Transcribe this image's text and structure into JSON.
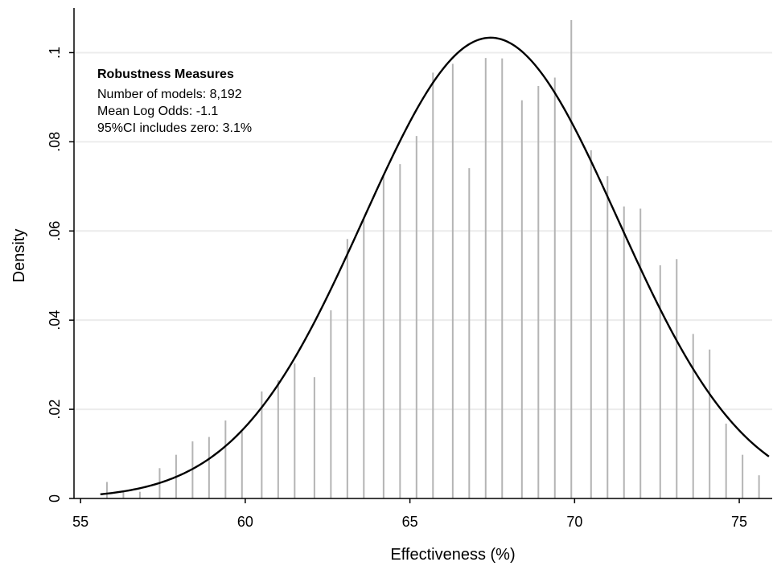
{
  "chart_data": {
    "type": "bar",
    "xlabel": "Effectiveness (%)",
    "ylabel": "Density",
    "xlim": [
      54.8,
      76
    ],
    "ylim": [
      0,
      0.11
    ],
    "x_ticks": [
      55,
      60,
      65,
      70,
      75
    ],
    "x_tick_labels": [
      "55",
      "60",
      "65",
      "70",
      "75"
    ],
    "y_ticks": [
      0,
      0.02,
      0.04,
      0.06,
      0.08,
      0.1
    ],
    "y_tick_labels": [
      "0",
      ".02",
      ".04",
      ".06",
      ".08",
      ".1"
    ],
    "grid": true,
    "colors": {
      "bars": "#b4b4b4",
      "curve": "#000000",
      "grid": "#ececec",
      "axis": "#000000"
    },
    "series": [
      {
        "kind": "histogram-spikes",
        "x": [
          55.8,
          56.3,
          56.8,
          57.4,
          57.9,
          58.4,
          58.9,
          59.4,
          59.9,
          60.5,
          61.0,
          61.5,
          62.1,
          62.6,
          63.1,
          63.6,
          64.2,
          64.7,
          65.2,
          65.7,
          66.3,
          66.8,
          67.3,
          67.8,
          68.4,
          68.9,
          69.4,
          69.9,
          70.5,
          71.0,
          71.5,
          72.0,
          72.6,
          73.1,
          73.6,
          74.1,
          74.6,
          75.1,
          75.6
        ],
        "values": [
          0.0037,
          0.0018,
          0.0015,
          0.0068,
          0.0098,
          0.0128,
          0.0138,
          0.0175,
          0.015,
          0.024,
          0.0265,
          0.0303,
          0.0272,
          0.0422,
          0.0582,
          0.0625,
          0.0722,
          0.075,
          0.0813,
          0.0955,
          0.0975,
          0.0741,
          0.0988,
          0.0987,
          0.0893,
          0.0925,
          0.0944,
          0.1073,
          0.0781,
          0.0723,
          0.0655,
          0.065,
          0.0523,
          0.0537,
          0.0369,
          0.0334,
          0.0168,
          0.0098,
          0.0052
        ]
      },
      {
        "kind": "normal-density-curve",
        "x_start": 55.6,
        "x_end": 75.9,
        "mean": 67.45,
        "sd": 3.86
      }
    ],
    "annotation": {
      "title": "Robustness Measures",
      "lines": [
        "Number of models: 8,192",
        "Mean Log Odds: -1.1",
        "95%CI includes zero: 3.1%"
      ]
    }
  }
}
